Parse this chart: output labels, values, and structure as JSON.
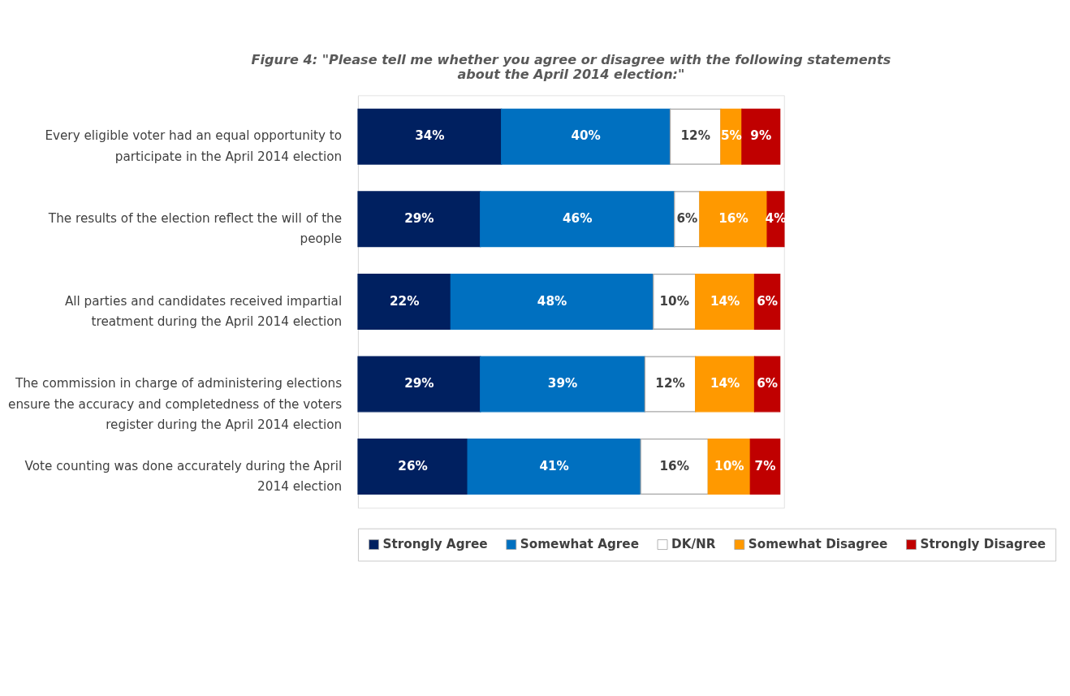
{
  "chart_data": {
    "type": "bar",
    "orientation": "horizontal",
    "stacked": true,
    "tick_labels": "y",
    "title": "Figure 4: \"Please tell me whether you agree or disagree with the following statements about the April 2014 election:\"",
    "categories": [
      "Every eligible voter had an equal opportunity to participate in the April 2014 election",
      "The results of the election reflect the will of the people",
      "All parties and candidates received impartial treatment during the April 2014 election",
      "The commission in charge of administering elections ensure the accuracy and completedness of the voters register during the April 2014 election",
      "Vote counting was done accurately during the April 2014 election"
    ],
    "series": [
      {
        "name": "Strongly Agree",
        "color": "#002060",
        "values": [
          34,
          29,
          22,
          29,
          26
        ],
        "value_labels": [
          "34%",
          "29%",
          "22%",
          "29%",
          "26%"
        ]
      },
      {
        "name": "Somewhat Agree",
        "color": "#0070c0",
        "values": [
          40,
          46,
          48,
          39,
          41
        ],
        "value_labels": [
          "40%",
          "46%",
          "48%",
          "39%",
          "41%"
        ]
      },
      {
        "name": "DK/NR",
        "color": "#ffffff",
        "values": [
          12,
          6,
          10,
          12,
          16
        ],
        "value_labels": [
          "12%",
          "6%",
          "10%",
          "12%",
          "16%"
        ]
      },
      {
        "name": "Somewhat Disagree",
        "color": "#ff9900",
        "values": [
          5,
          16,
          14,
          14,
          10
        ],
        "value_labels": [
          "5%",
          "16%",
          "14%",
          "14%",
          "10%"
        ]
      },
      {
        "name": "Strongly Disagree",
        "color": "#c00000",
        "values": [
          9,
          4,
          6,
          6,
          7
        ],
        "value_labels": [
          "9%",
          "4%",
          "6%",
          "6%",
          "7%"
        ]
      }
    ],
    "legend": "bottom",
    "grid": false
  }
}
